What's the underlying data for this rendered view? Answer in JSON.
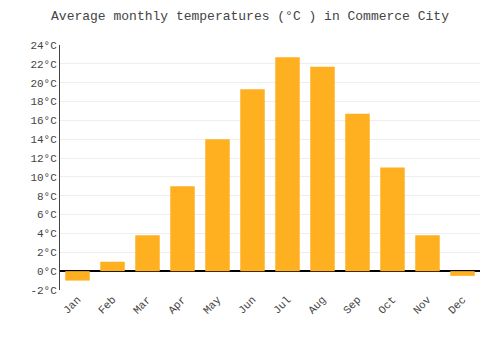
{
  "chart_data": {
    "type": "bar",
    "title": "Average monthly temperatures (°C ) in Commerce City",
    "categories": [
      "Jan",
      "Feb",
      "Mar",
      "Apr",
      "May",
      "Jun",
      "Jul",
      "Aug",
      "Sep",
      "Oct",
      "Nov",
      "Dec"
    ],
    "values": [
      -1.0,
      1.0,
      3.8,
      9.0,
      14.0,
      19.3,
      22.7,
      21.7,
      16.7,
      11.0,
      3.8,
      -0.5
    ],
    "color": "#FFB020",
    "ylim": [
      -2,
      24
    ],
    "yticks": [
      {
        "value": -2,
        "label": "-2°C"
      },
      {
        "value": 0,
        "label": "0°C"
      },
      {
        "value": 2,
        "label": "2°C"
      },
      {
        "value": 4,
        "label": "4°C"
      },
      {
        "value": 6,
        "label": "6°C"
      },
      {
        "value": 8,
        "label": "8°C"
      },
      {
        "value": 10,
        "label": "10°C"
      },
      {
        "value": 12,
        "label": "12°C"
      },
      {
        "value": 14,
        "label": "14°C"
      },
      {
        "value": 16,
        "label": "16°C"
      },
      {
        "value": 18,
        "label": "18°C"
      },
      {
        "value": 20,
        "label": "20°C"
      },
      {
        "value": 22,
        "label": "22°C"
      },
      {
        "value": 24,
        "label": "24°C"
      }
    ],
    "grid": true
  }
}
